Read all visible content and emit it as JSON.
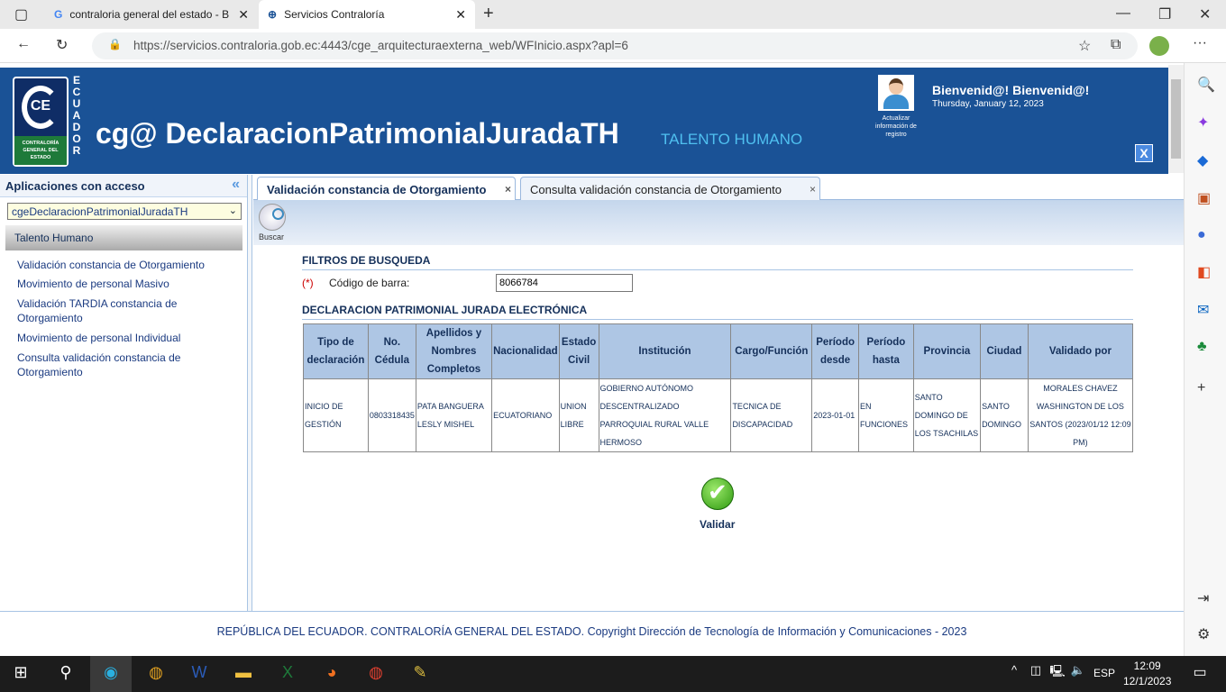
{
  "browser": {
    "tabs": [
      {
        "label": "contraloria general del estado - B",
        "active": false
      },
      {
        "label": "Servicios Contraloría",
        "active": true
      }
    ],
    "url": "https://servicios.contraloria.gob.ec:4443/cge_arquitecturaexterna_web/WFInicio.aspx?apl=6"
  },
  "header": {
    "logo_text": "CONTRALORÍA GENERAL DEL ESTADO",
    "logo_vertical": "ECUADOR",
    "title": "cg@ DeclaracionPatrimonialJuradaTH",
    "subtitle": "TALENTO HUMANO",
    "avatar_caption": "Actualizar información de registro",
    "welcome": "Bienvenid@! Bienvenid@!",
    "date": "Thursday, January 12, 2023",
    "close_label": "X"
  },
  "sidebar": {
    "title": "Aplicaciones con acceso",
    "collapse": "«",
    "selected_app": "cgeDeclaracionPatrimonialJuradaTH",
    "group": "Talento Humano",
    "items": [
      "Validación constancia de Otorgamiento",
      "Movimiento de personal Masivo",
      "Validación TARDIA constancia de Otorgamiento",
      "Movimiento de personal Individual",
      "Consulta validación constancia de Otorgamiento"
    ]
  },
  "tabs": [
    {
      "label": "Validación constancia de Otorgamiento",
      "active": true
    },
    {
      "label": "Consulta validación constancia de Otorgamiento",
      "active": false
    }
  ],
  "toolbar": {
    "search_label": "Buscar"
  },
  "filters": {
    "title": "FILTROS DE BUSQUEDA",
    "required_mark": "(*)",
    "barcode_label": "Código de barra:",
    "barcode_value": "8066784"
  },
  "results": {
    "title": "DECLARACION PATRIMONIAL JURADA ELECTRÓNICA",
    "columns": [
      "Tipo de declaración",
      "No. Cédula",
      "Apellidos y Nombres Completos",
      "Nacionalidad",
      "Estado Civil",
      "Institución",
      "Cargo/Función",
      "Período desde",
      "Período hasta",
      "Provincia",
      "Ciudad",
      "Validado por"
    ],
    "rows": [
      [
        "INICIO DE GESTIÓN",
        "0803318435",
        "PATA BANGUERA LESLY MISHEL",
        "ECUATORIANO",
        "UNION LIBRE",
        "GOBIERNO AUTÓNOMO DESCENTRALIZADO PARROQUIAL RURAL VALLE HERMOSO",
        "TECNICA DE DISCAPACIDAD",
        "2023-01-01",
        "EN FUNCIONES",
        "SANTO DOMINGO DE LOS TSACHILAS",
        "SANTO DOMINGO",
        "MORALES CHAVEZ WASHINGTON DE LOS SANTOS (2023/01/12 12:09 PM)"
      ]
    ]
  },
  "validate_label": "Validar",
  "footer": "REPÚBLICA DEL ECUADOR. CONTRALORÍA GENERAL DEL ESTADO. Copyright Dirección de Tecnología de Información y Comunicaciones - 2023",
  "taskbar": {
    "language": "ESP",
    "time": "12:09",
    "date": "12/1/2023"
  },
  "colors": {
    "header": "#1a5296",
    "table_header": "#aec6e4",
    "accent": "#4fc0f0"
  }
}
